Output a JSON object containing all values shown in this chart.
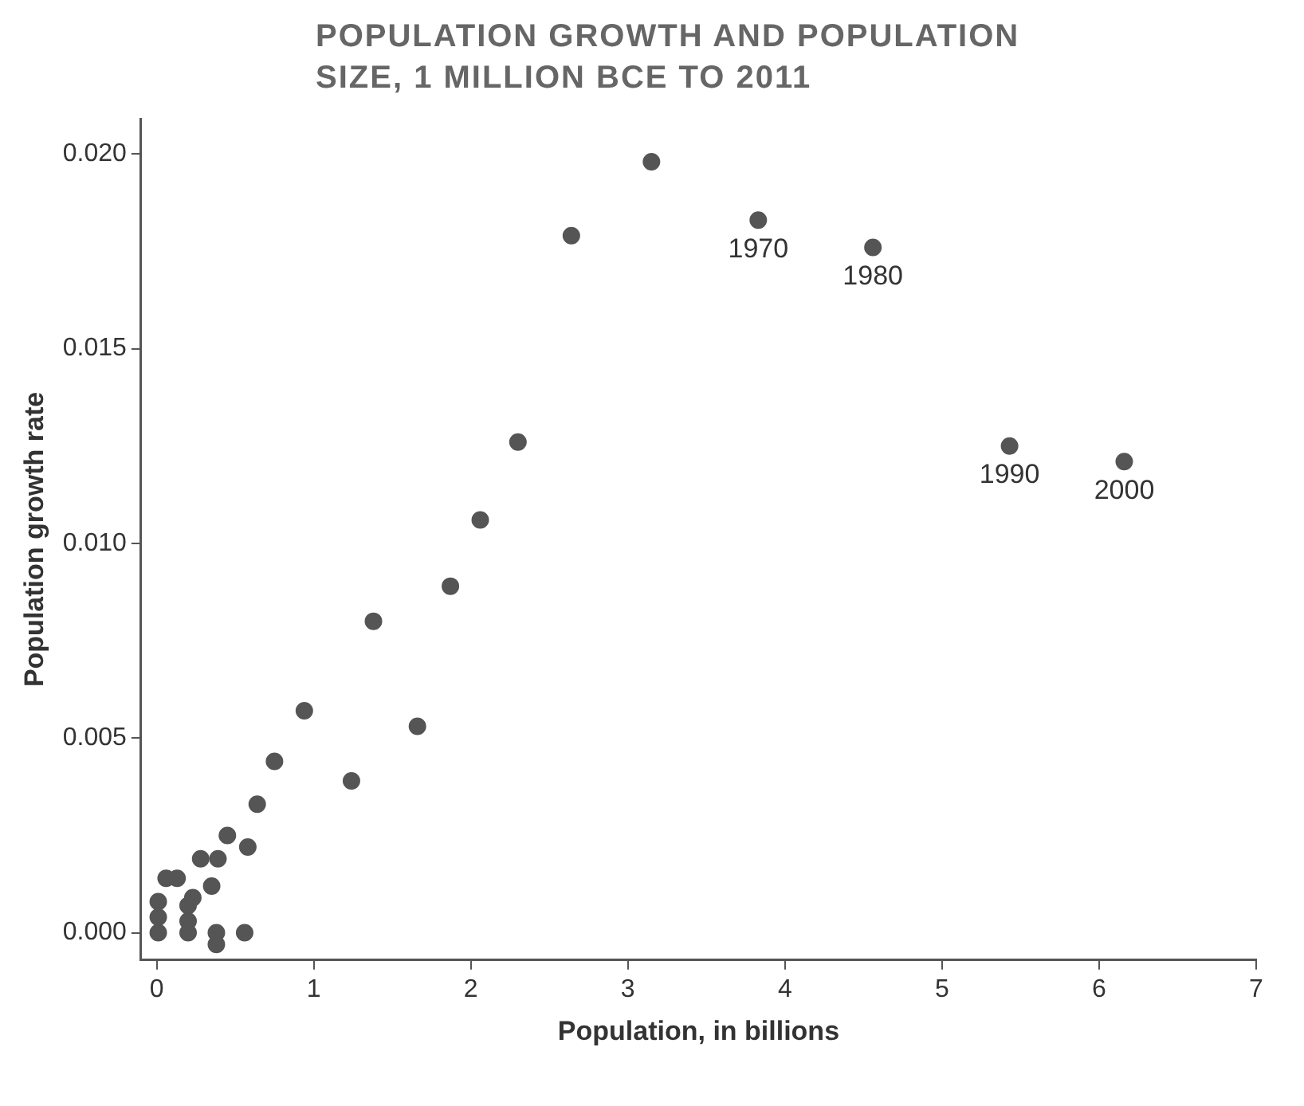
{
  "chart_data": {
    "type": "scatter",
    "title": "POPULATION GROWTH AND POPULATION SIZE, 1 MILLION BCE TO 2011",
    "xlabel": "Population, in billions",
    "ylabel": "Population growth rate",
    "x": [
      3.15,
      2.64,
      3.83,
      4.56,
      5.43,
      6.16,
      2.3,
      2.06,
      1.87,
      1.38,
      1.66,
      1.24,
      0.94,
      0.75,
      0.64,
      0.45,
      0.58,
      0.28,
      0.39,
      0.06,
      0.13,
      0.35,
      0.23,
      0.01,
      0.01,
      0.01,
      0.2,
      0.2,
      0.2,
      0.38,
      0.38,
      0.56
    ],
    "values": [
      0.0198,
      0.0179,
      0.0183,
      0.0176,
      0.0125,
      0.0121,
      0.0126,
      0.0106,
      0.0089,
      0.008,
      0.0053,
      0.0039,
      0.0057,
      0.0044,
      0.0033,
      0.0025,
      0.0022,
      0.0019,
      0.0019,
      0.0014,
      0.0014,
      0.0012,
      0.0009,
      0.0008,
      0.0004,
      0.0,
      0.0007,
      0.0003,
      0.0,
      0.0,
      -0.0003,
      0.0
    ],
    "color": "#555555",
    "marker": "circle",
    "grid": false,
    "xlim": [
      -0.1,
      7.0
    ],
    "xticks": [
      0,
      1,
      2,
      3,
      4,
      5,
      6,
      7
    ],
    "ylim": [
      -0.0007,
      0.0209
    ],
    "yticks": [
      {
        "value": 0,
        "label": "0.000"
      },
      {
        "value": 0.005,
        "label": "0.005"
      },
      {
        "value": 0.01,
        "label": "0.010"
      },
      {
        "value": 0.015,
        "label": "0.015"
      },
      {
        "value": 0.02,
        "label": "0.020"
      }
    ],
    "annotations": [
      {
        "text": "1970",
        "x": 3.83,
        "y": 0.0183
      },
      {
        "text": "1980",
        "x": 4.56,
        "y": 0.0176
      },
      {
        "text": "1990",
        "x": 5.43,
        "y": 0.0125
      },
      {
        "text": "2000",
        "x": 6.16,
        "y": 0.0121
      }
    ]
  }
}
